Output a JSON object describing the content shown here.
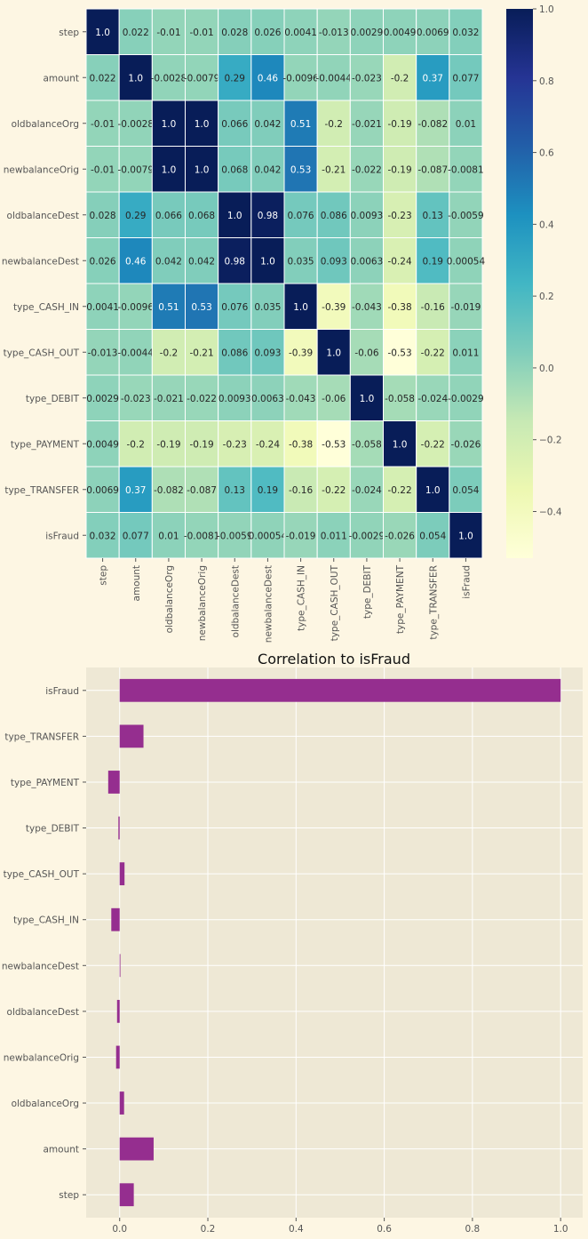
{
  "chart_data": [
    {
      "type": "heatmap",
      "title": "",
      "labels": [
        "step",
        "amount",
        "oldbalanceOrg",
        "newbalanceOrig",
        "oldbalanceDest",
        "newbalanceDest",
        "type_CASH_IN",
        "type_CASH_OUT",
        "type_DEBIT",
        "type_PAYMENT",
        "type_TRANSFER",
        "isFraud"
      ],
      "matrix": [
        [
          1.0,
          0.022,
          -0.01,
          -0.01,
          0.028,
          0.026,
          0.0041,
          -0.013,
          0.0029,
          0.0049,
          0.0069,
          0.032
        ],
        [
          0.022,
          1.0,
          -0.0028,
          -0.0079,
          0.29,
          0.46,
          -0.0096,
          -0.0044,
          -0.023,
          -0.2,
          0.37,
          0.077
        ],
        [
          -0.01,
          -0.0028,
          1.0,
          1.0,
          0.066,
          0.042,
          0.51,
          -0.2,
          -0.021,
          -0.19,
          -0.082,
          0.01
        ],
        [
          -0.01,
          -0.0079,
          1.0,
          1.0,
          0.068,
          0.042,
          0.53,
          -0.21,
          -0.022,
          -0.19,
          -0.087,
          -0.0081
        ],
        [
          0.028,
          0.29,
          0.066,
          0.068,
          1.0,
          0.98,
          0.076,
          0.086,
          0.0093,
          -0.23,
          0.13,
          -0.0059
        ],
        [
          0.026,
          0.46,
          0.042,
          0.042,
          0.98,
          1.0,
          0.035,
          0.093,
          0.0063,
          -0.24,
          0.19,
          0.00054
        ],
        [
          0.0041,
          -0.0096,
          0.51,
          0.53,
          0.076,
          0.035,
          1.0,
          -0.39,
          -0.043,
          -0.38,
          -0.16,
          -0.019
        ],
        [
          -0.013,
          -0.0044,
          -0.2,
          -0.21,
          0.086,
          0.093,
          -0.39,
          1.0,
          -0.06,
          -0.53,
          -0.22,
          0.011
        ],
        [
          0.0029,
          -0.023,
          -0.021,
          -0.022,
          0.0093,
          0.0063,
          -0.043,
          -0.06,
          1.0,
          -0.058,
          -0.024,
          -0.0029
        ],
        [
          0.0049,
          -0.2,
          -0.19,
          -0.19,
          -0.23,
          -0.24,
          -0.38,
          -0.53,
          -0.058,
          1.0,
          -0.22,
          -0.026
        ],
        [
          0.0069,
          0.37,
          -0.082,
          -0.087,
          0.13,
          0.19,
          -0.16,
          -0.22,
          -0.024,
          -0.22,
          1.0,
          0.054
        ],
        [
          0.032,
          0.077,
          0.01,
          -0.0081,
          -0.0059,
          0.00054,
          -0.019,
          0.011,
          -0.0029,
          -0.026,
          0.054,
          1.0
        ]
      ],
      "display": [
        [
          "1.0",
          "0.022",
          "-0.01",
          "-0.01",
          "0.028",
          "0.026",
          "0.0041",
          "-0.013",
          "0.0029",
          "0.0049",
          "0.0069",
          "0.032"
        ],
        [
          "0.022",
          "1.0",
          "-0.0028",
          "-0.0079",
          "0.29",
          "0.46",
          "-0.0096",
          "-0.0044",
          "-0.023",
          "-0.2",
          "0.37",
          "0.077"
        ],
        [
          "-0.01",
          "-0.0028",
          "1.0",
          "1.0",
          "0.066",
          "0.042",
          "0.51",
          "-0.2",
          "-0.021",
          "-0.19",
          "-0.082",
          "0.01"
        ],
        [
          "-0.01",
          "-0.0079",
          "1.0",
          "1.0",
          "0.068",
          "0.042",
          "0.53",
          "-0.21",
          "-0.022",
          "-0.19",
          "-0.087",
          "-0.0081"
        ],
        [
          "0.028",
          "0.29",
          "0.066",
          "0.068",
          "1.0",
          "0.98",
          "0.076",
          "0.086",
          "0.0093",
          "-0.23",
          "0.13",
          "-0.0059"
        ],
        [
          "0.026",
          "0.46",
          "0.042",
          "0.042",
          "0.98",
          "1.0",
          "0.035",
          "0.093",
          "0.0063",
          "-0.24",
          "0.19",
          "0.00054"
        ],
        [
          "0.0041",
          "-0.0096",
          "0.51",
          "0.53",
          "0.076",
          "0.035",
          "1.0",
          "-0.39",
          "-0.043",
          "-0.38",
          "-0.16",
          "-0.019"
        ],
        [
          "-0.013",
          "-0.0044",
          "-0.2",
          "-0.21",
          "0.086",
          "0.093",
          "-0.39",
          "1.0",
          "-0.06",
          "-0.53",
          "-0.22",
          "0.011"
        ],
        [
          "0.0029",
          "-0.023",
          "-0.021",
          "-0.022",
          "0.0093",
          "0.0063",
          "-0.043",
          "-0.06",
          "1.0",
          "-0.058",
          "-0.024",
          "-0.0029"
        ],
        [
          "0.0049",
          "-0.2",
          "-0.19",
          "-0.19",
          "-0.23",
          "-0.24",
          "-0.38",
          "-0.53",
          "-0.058",
          "1.0",
          "-0.22",
          "-0.026"
        ],
        [
          "0.0069",
          "0.37",
          "-0.082",
          "-0.087",
          "0.13",
          "0.19",
          "-0.16",
          "-0.22",
          "-0.024",
          "-0.22",
          "1.0",
          "0.054"
        ],
        [
          "0.032",
          "0.077",
          "0.01",
          "-0.0081",
          "-0.0059",
          "0.00054",
          "-0.019",
          "0.011",
          "-0.0029",
          "-0.026",
          "0.054",
          "1.0"
        ]
      ],
      "colormap": "YlGnBu",
      "colorbar": {
        "min": -0.53,
        "max": 1.0,
        "ticks": [
          1.0,
          0.8,
          0.6,
          0.4,
          0.2,
          0.0,
          -0.2,
          -0.4
        ],
        "tick_labels": [
          "1.0",
          "0.8",
          "0.6",
          "0.4",
          "0.2",
          "0.0",
          "−0.2",
          "−0.4"
        ]
      }
    },
    {
      "type": "bar",
      "orientation": "horizontal",
      "title": "Correlation to isFraud",
      "categories": [
        "step",
        "amount",
        "oldbalanceOrg",
        "newbalanceOrig",
        "oldbalanceDest",
        "newbalanceDest",
        "type_CASH_IN",
        "type_CASH_OUT",
        "type_DEBIT",
        "type_PAYMENT",
        "type_TRANSFER",
        "isFraud"
      ],
      "values": [
        0.032,
        0.077,
        0.01,
        -0.0081,
        -0.0059,
        0.00054,
        -0.019,
        0.011,
        -0.0029,
        -0.026,
        0.054,
        1.0
      ],
      "xlim": [
        -0.076,
        1.05
      ],
      "xticks": [
        0.0,
        0.2,
        0.4,
        0.6,
        0.8,
        1.0
      ],
      "xtick_labels": [
        "0.0",
        "0.2",
        "0.4",
        "0.6",
        "0.8",
        "1.0"
      ],
      "xlabel": "",
      "ylabel": "",
      "grid": true,
      "colors": {
        "bar": "#952e8f",
        "axes_bg": "#eee8d5",
        "grid": "#ffffff"
      }
    }
  ],
  "colors": {
    "figure_bg": "#fdf6e3",
    "tick_text": "#555555",
    "title_text": "#111111"
  }
}
